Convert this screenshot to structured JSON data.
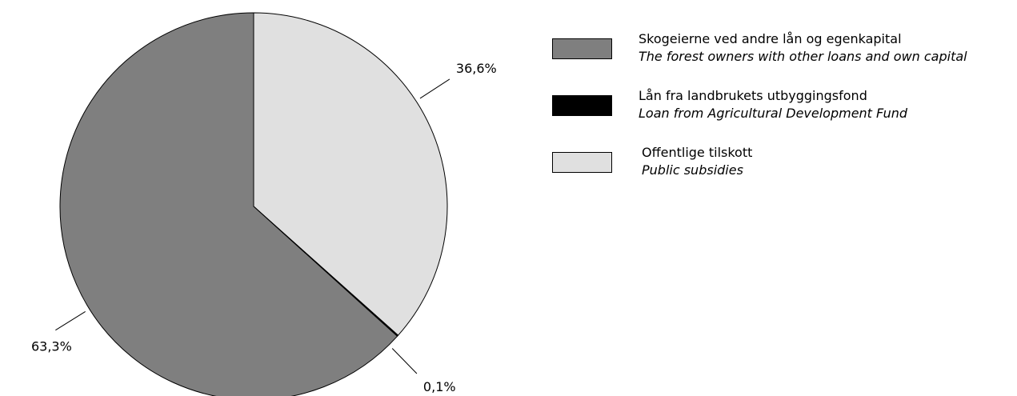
{
  "chart_data": {
    "type": "pie",
    "slices": [
      {
        "value": 36.6,
        "label": "36,6%",
        "color": "#e0e0e0",
        "name_no": "Offentlige tilskott",
        "name_en": "Public subsidies"
      },
      {
        "value": 0.1,
        "label": "0,1%",
        "color": "#000000",
        "name_no": "Lån fra landbrukets utbyggingsfond",
        "name_en": "Loan from Agricultural Development Fund"
      },
      {
        "value": 63.3,
        "label": "63,3%",
        "color": "#7f7f7f",
        "name_no": "Skogeierne ved andre lån og egenkapital",
        "name_en": "The forest owners with other loans and own capital"
      }
    ],
    "start_angle": "12 o'clock",
    "direction": "clockwise",
    "legend_position": "right"
  },
  "legend": [
    {
      "no": "Skogeierne ved andre lån og egenkapital",
      "en": "The forest owners with other loans and own capital",
      "color": "#7f7f7f"
    },
    {
      "no": "Lån fra landbrukets utbyggingsfond",
      "en": "Loan from Agricultural Development Fund",
      "color": "#000000"
    },
    {
      "no": "Offentlige tilskott",
      "en": "Public subsidies",
      "color": "#e0e0e0"
    }
  ]
}
